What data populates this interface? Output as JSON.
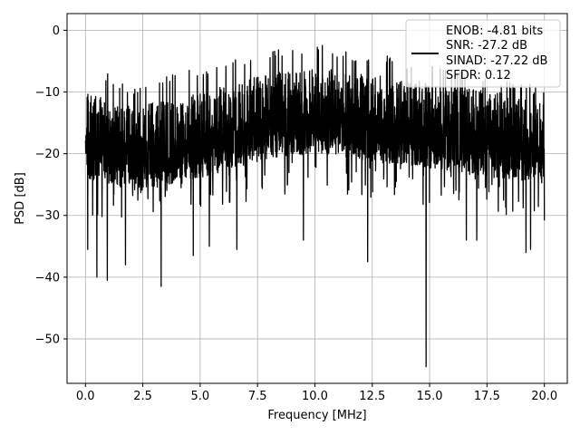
{
  "chart_data": {
    "type": "line",
    "title": "",
    "xlabel": "Frequency [MHz]",
    "ylabel": "PSD [dB]",
    "xlim": [
      -0.8,
      21.0
    ],
    "ylim": [
      -57.2,
      2.7
    ],
    "xticks": [
      0.0,
      2.5,
      5.0,
      7.5,
      10.0,
      12.5,
      15.0,
      17.5,
      20.0
    ],
    "xtick_labels": [
      "0.0",
      "2.5",
      "5.0",
      "7.5",
      "10.0",
      "12.5",
      "15.0",
      "17.5",
      "20.0"
    ],
    "yticks": [
      0,
      -10,
      -20,
      -30,
      -40,
      -50
    ],
    "ytick_labels": [
      "0",
      "−10",
      "−20",
      "−30",
      "−40",
      "−50"
    ],
    "grid": true,
    "legend_position": "top-right",
    "series": [
      {
        "name": "",
        "color": "#000000",
        "x_range": [
          0.0,
          20.0
        ],
        "upper_envelope": {
          "x": [
            0.0,
            1.0,
            2.0,
            3.0,
            4.0,
            5.0,
            6.0,
            7.0,
            8.0,
            9.0,
            10.0,
            11.0,
            12.0,
            13.0,
            14.0,
            15.0,
            16.0,
            17.0,
            18.0,
            19.0,
            20.0
          ],
          "y": [
            -4,
            -7,
            -9,
            -8,
            -7,
            -6,
            -5,
            -4,
            -3,
            -3,
            -2,
            -3,
            -4,
            -4,
            -5,
            -5,
            -6,
            -7,
            -8,
            -8,
            -10
          ]
        },
        "band_typical": {
          "upper": {
            "x": [
              0.0,
              2.0,
              4.0,
              6.0,
              8.0,
              10.0,
              12.0,
              14.0,
              16.0,
              18.0,
              20.0
            ],
            "y": [
              -10,
              -12,
              -11,
              -9,
              -7,
              -6,
              -7,
              -8,
              -9,
              -10,
              -12
            ]
          },
          "lower": {
            "x": [
              0.0,
              2.0,
              4.0,
              6.0,
              8.0,
              10.0,
              12.0,
              14.0,
              16.0,
              18.0,
              20.0
            ],
            "y": [
              -24,
              -26,
              -25,
              -23,
              -21,
              -20,
              -21,
              -22,
              -23,
              -24,
              -25
            ]
          }
        },
        "notable_minima": [
          {
            "x": 0.1,
            "y": -35.5
          },
          {
            "x": 0.5,
            "y": -40.0
          },
          {
            "x": 0.95,
            "y": -40.5
          },
          {
            "x": 1.75,
            "y": -38.0
          },
          {
            "x": 3.3,
            "y": -41.5
          },
          {
            "x": 4.7,
            "y": -36.5
          },
          {
            "x": 5.4,
            "y": -35.0
          },
          {
            "x": 6.6,
            "y": -35.5
          },
          {
            "x": 9.5,
            "y": -34.0
          },
          {
            "x": 12.3,
            "y": -37.5
          },
          {
            "x": 14.85,
            "y": -54.5
          },
          {
            "x": 16.6,
            "y": -34.0
          },
          {
            "x": 17.05,
            "y": -34.0
          },
          {
            "x": 19.2,
            "y": -36.0
          },
          {
            "x": 19.4,
            "y": -35.5
          }
        ]
      }
    ],
    "legend": {
      "lines": [
        "ENOB: -4.81 bits",
        "SNR: -27.2 dB",
        "SINAD: -27.22 dB",
        "SFDR: 0.12"
      ]
    }
  }
}
